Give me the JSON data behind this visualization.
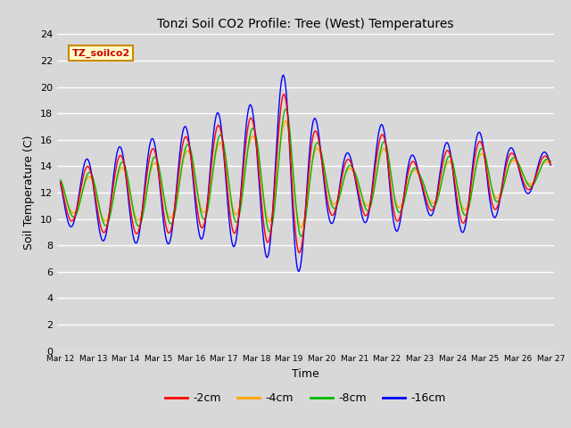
{
  "title": "Tonzi Soil CO2 Profile: Tree (West) Temperatures",
  "xlabel": "Time",
  "ylabel": "Soil Temperature (C)",
  "ylim": [
    0,
    24
  ],
  "yticks": [
    0,
    2,
    4,
    6,
    8,
    10,
    12,
    14,
    16,
    18,
    20,
    22,
    24
  ],
  "bg_color": "#d8d8d8",
  "legend_label": "TZ_soilco2",
  "series_colors": {
    "-2cm": "#ff0000",
    "-4cm": "#ffa500",
    "-8cm": "#00bb00",
    "-16cm": "#0000ff"
  },
  "x_tick_labels": [
    "Mar 12",
    "Mar 13",
    "Mar 14",
    "Mar 15",
    "Mar 16",
    "Mar 17",
    "Mar 18",
    "Mar 19",
    "Mar 20",
    "Mar 21",
    "Mar 22",
    "Mar 23",
    "Mar 24",
    "Mar 25",
    "Mar 26",
    "Mar 27"
  ]
}
